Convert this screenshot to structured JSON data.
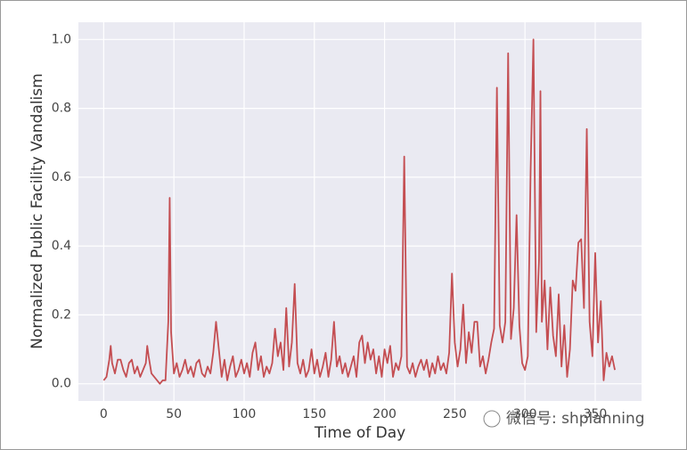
{
  "chart_data": {
    "type": "line",
    "xlabel": "Time of Day",
    "ylabel": "Normalized Public  Facility Vandalism",
    "watermark": "微信号: shplanning",
    "color": "#c44e52",
    "grid": true,
    "xlim": [
      -18,
      383
    ],
    "ylim": [
      -0.05,
      1.05
    ],
    "xticks": [
      0,
      50,
      100,
      150,
      200,
      250,
      300,
      350
    ],
    "yticks": [
      {
        "value": 0,
        "label": "0.0"
      },
      0.2,
      0.4,
      0.6,
      0.8,
      {
        "value": 1,
        "label": "1.0"
      }
    ],
    "x": [
      0,
      2,
      4,
      5,
      6,
      8,
      10,
      12,
      14,
      16,
      18,
      20,
      22,
      24,
      26,
      28,
      30,
      31,
      32,
      34,
      36,
      38,
      40,
      42,
      44,
      46,
      47,
      48,
      50,
      52,
      54,
      56,
      58,
      60,
      62,
      64,
      66,
      68,
      70,
      72,
      74,
      76,
      78,
      80,
      82,
      84,
      86,
      88,
      90,
      92,
      94,
      96,
      98,
      100,
      102,
      104,
      106,
      108,
      110,
      112,
      114,
      116,
      118,
      120,
      122,
      124,
      126,
      128,
      130,
      132,
      134,
      136,
      138,
      140,
      142,
      144,
      146,
      148,
      150,
      152,
      154,
      156,
      158,
      160,
      162,
      164,
      166,
      168,
      170,
      172,
      174,
      176,
      178,
      180,
      182,
      184,
      186,
      188,
      190,
      192,
      194,
      196,
      198,
      200,
      202,
      204,
      206,
      208,
      210,
      212,
      214,
      216,
      218,
      220,
      222,
      224,
      226,
      228,
      230,
      232,
      234,
      236,
      238,
      240,
      242,
      244,
      246,
      248,
      250,
      252,
      254,
      256,
      258,
      260,
      262,
      264,
      266,
      268,
      270,
      272,
      274,
      276,
      278,
      280,
      282,
      284,
      286,
      288,
      290,
      292,
      294,
      296,
      298,
      300,
      302,
      304,
      306,
      308,
      310,
      311,
      312,
      314,
      316,
      318,
      320,
      322,
      324,
      326,
      328,
      330,
      332,
      334,
      336,
      338,
      340,
      342,
      344,
      346,
      348,
      350,
      352,
      354,
      356,
      358,
      360,
      362,
      364
    ],
    "values": [
      0.01,
      0.02,
      0.07,
      0.11,
      0.06,
      0.03,
      0.07,
      0.07,
      0.04,
      0.02,
      0.06,
      0.07,
      0.03,
      0.05,
      0.02,
      0.04,
      0.06,
      0.11,
      0.08,
      0.03,
      0.02,
      0.01,
      0,
      0.01,
      0.01,
      0.18,
      0.54,
      0.15,
      0.03,
      0.06,
      0.02,
      0.04,
      0.07,
      0.03,
      0.05,
      0.02,
      0.06,
      0.07,
      0.03,
      0.02,
      0.05,
      0.03,
      0.09,
      0.18,
      0.1,
      0.02,
      0.07,
      0.01,
      0.05,
      0.08,
      0.02,
      0.04,
      0.07,
      0.03,
      0.06,
      0.02,
      0.09,
      0.12,
      0.04,
      0.08,
      0.02,
      0.05,
      0.03,
      0.06,
      0.16,
      0.08,
      0.12,
      0.04,
      0.22,
      0.05,
      0.12,
      0.29,
      0.06,
      0.03,
      0.07,
      0.02,
      0.04,
      0.1,
      0.03,
      0.07,
      0.02,
      0.05,
      0.09,
      0.02,
      0.07,
      0.18,
      0.05,
      0.08,
      0.03,
      0.06,
      0.02,
      0.05,
      0.08,
      0.02,
      0.12,
      0.14,
      0.06,
      0.12,
      0.07,
      0.1,
      0.03,
      0.08,
      0.02,
      0.1,
      0.06,
      0.11,
      0.02,
      0.06,
      0.04,
      0.08,
      0.66,
      0.05,
      0.03,
      0.06,
      0.02,
      0.05,
      0.07,
      0.04,
      0.07,
      0.02,
      0.06,
      0.03,
      0.08,
      0.04,
      0.06,
      0.03,
      0.09,
      0.32,
      0.12,
      0.05,
      0.1,
      0.23,
      0.06,
      0.15,
      0.09,
      0.18,
      0.18,
      0.05,
      0.08,
      0.03,
      0.07,
      0.12,
      0.16,
      0.86,
      0.17,
      0.12,
      0.18,
      0.96,
      0.13,
      0.22,
      0.49,
      0.17,
      0.06,
      0.04,
      0.08,
      0.62,
      1.0,
      0.15,
      0.36,
      0.85,
      0.18,
      0.3,
      0.1,
      0.28,
      0.14,
      0.08,
      0.26,
      0.05,
      0.17,
      0.02,
      0.1,
      0.3,
      0.27,
      0.41,
      0.42,
      0.22,
      0.74,
      0.18,
      0.08,
      0.38,
      0.12,
      0.24,
      0.01,
      0.09,
      0.05,
      0.08,
      0.04
    ]
  }
}
